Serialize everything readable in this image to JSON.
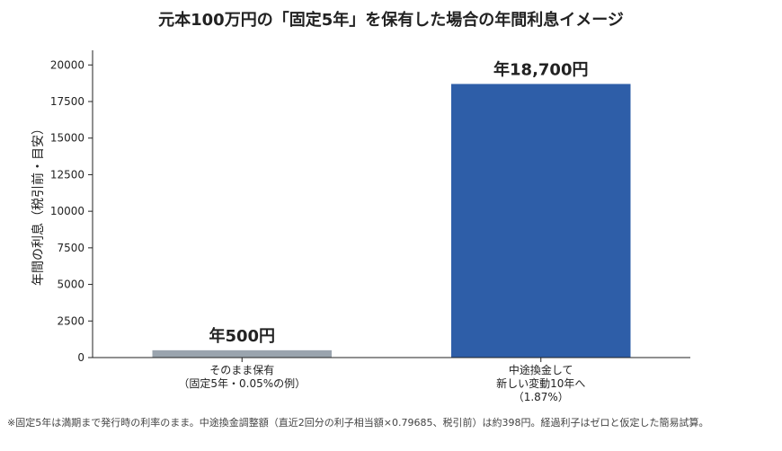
{
  "chart_data": {
    "type": "bar",
    "title": "元本100万円の「固定5年」を保有した場合の年間利息イメージ",
    "ylabel": "年間の利息（税引前・目安）",
    "xlabel": "",
    "ylim": [
      0,
      21000
    ],
    "yticks": [
      0,
      2500,
      5000,
      7500,
      10000,
      12500,
      15000,
      17500,
      20000
    ],
    "categories": [
      [
        "そのまま保有",
        "（固定5年・0.05%の例）"
      ],
      [
        "中途換金して",
        "新しい変動10年へ",
        "（1.87%）"
      ]
    ],
    "values": [
      500,
      18700
    ],
    "value_labels": [
      "年500円",
      "年18,700円"
    ],
    "colors": [
      "#9aa4ae",
      "#2e5ea8"
    ],
    "grid": false,
    "legend": "none"
  },
  "footnote": "※固定5年は満期まで発行時の利率のまま。中途換金調整額（直近2回分の利子相当額×0.79685、税引前）は約398円。経過利子はゼロと仮定した簡易試算。"
}
